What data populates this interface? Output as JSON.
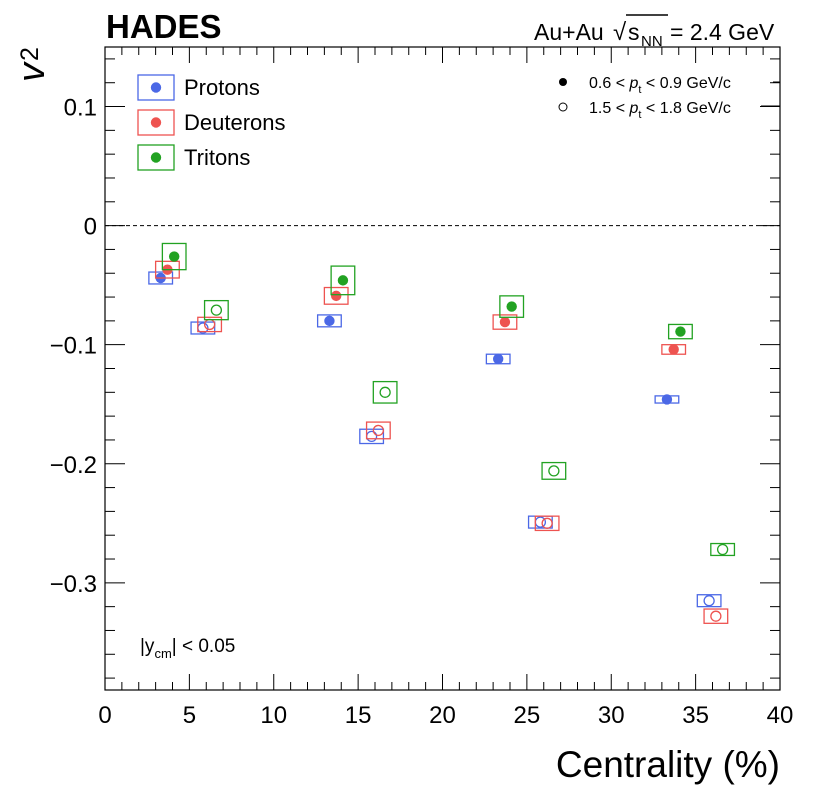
{
  "chart_data": {
    "type": "scatter",
    "experiment": "HADES",
    "system": "Au+Au",
    "energy_label": "= 2.4 GeV",
    "sqrt_symbol": "√",
    "s_symbol": "s",
    "nn_sub": "NN",
    "xlabel": "Centrality (%)",
    "ylabel": "v",
    "ylabel_sub": "2",
    "rapidity_label": "|y",
    "rapidity_sub": "cm",
    "rapidity_value": "| < 0.05",
    "xlim": [
      0,
      40
    ],
    "ylim": [
      -0.39,
      0.15
    ],
    "x_ticks": [
      0,
      5,
      10,
      15,
      20,
      25,
      30,
      35,
      40
    ],
    "x_tick_labels": [
      "0",
      "5",
      "10",
      "15",
      "20",
      "25",
      "30",
      "35",
      "40"
    ],
    "y_ticks": [
      0.1,
      0,
      -0.1,
      -0.2,
      -0.3
    ],
    "y_tick_labels": [
      "0.1",
      "0",
      "−0.1",
      "−0.2",
      "−0.3"
    ],
    "zero_line": true,
    "legend": [
      {
        "name": "Protons",
        "color": "#4b68e6"
      },
      {
        "name": "Deuterons",
        "color": "#ee5350"
      },
      {
        "name": "Tritons",
        "color": "#22a222"
      }
    ],
    "pt_legend": [
      {
        "marker": "filled",
        "pre": "0.6 < ",
        "p": "p",
        "sub": "t",
        "post": " < 0.9 GeV/c"
      },
      {
        "marker": "open",
        "pre": "1.5 < ",
        "p": "p",
        "sub": "t",
        "post": " < 1.8 GeV/c"
      }
    ],
    "series": [
      {
        "name": "Protons",
        "pt_bin": "0.6 < pt < 0.9 GeV/c",
        "marker": "filled",
        "color": "#4b68e6",
        "x": [
          3.3,
          13.3,
          23.3,
          33.3
        ],
        "y": [
          -0.044,
          -0.08,
          -0.112,
          -0.146
        ],
        "sys_half_width": [
          0.7,
          0.7,
          0.7,
          0.7
        ],
        "sys_error": [
          0.005,
          0.005,
          0.004,
          0.003
        ]
      },
      {
        "name": "Deuterons",
        "pt_bin": "0.6 < pt < 0.9 GeV/c",
        "marker": "filled",
        "color": "#ee5350",
        "x": [
          3.7,
          13.7,
          23.7,
          33.7
        ],
        "y": [
          -0.037,
          -0.059,
          -0.081,
          -0.104
        ],
        "sys_half_width": [
          0.7,
          0.7,
          0.7,
          0.7
        ],
        "sys_error": [
          0.007,
          0.007,
          0.006,
          0.004
        ]
      },
      {
        "name": "Tritons",
        "pt_bin": "0.6 < pt < 0.9 GeV/c",
        "marker": "filled",
        "color": "#22a222",
        "x": [
          4.1,
          14.1,
          24.1,
          34.1
        ],
        "y": [
          -0.026,
          -0.046,
          -0.068,
          -0.089
        ],
        "sys_half_width": [
          0.7,
          0.7,
          0.7,
          0.7
        ],
        "sys_error": [
          0.011,
          0.012,
          0.009,
          0.006
        ]
      },
      {
        "name": "Protons",
        "pt_bin": "1.5 < pt < 1.8 GeV/c",
        "marker": "open",
        "color": "#4b68e6",
        "x": [
          5.8,
          15.8,
          25.8,
          35.8
        ],
        "y": [
          -0.086,
          -0.177,
          -0.249,
          -0.315
        ],
        "sys_half_width": [
          0.7,
          0.7,
          0.7,
          0.7
        ],
        "sys_error": [
          0.005,
          0.006,
          0.005,
          0.005
        ]
      },
      {
        "name": "Deuterons",
        "pt_bin": "1.5 < pt < 1.8 GeV/c",
        "marker": "open",
        "color": "#ee5350",
        "x": [
          6.2,
          16.2,
          26.2,
          36.2
        ],
        "y": [
          -0.083,
          -0.172,
          -0.25,
          -0.328
        ],
        "sys_half_width": [
          0.7,
          0.7,
          0.7,
          0.7
        ],
        "sys_error": [
          0.006,
          0.007,
          0.006,
          0.006
        ]
      },
      {
        "name": "Tritons",
        "pt_bin": "1.5 < pt < 1.8 GeV/c",
        "marker": "open",
        "color": "#22a222",
        "x": [
          6.6,
          16.6,
          26.6,
          36.6
        ],
        "y": [
          -0.071,
          -0.14,
          -0.206,
          -0.272
        ],
        "sys_half_width": [
          0.7,
          0.7,
          0.7,
          0.7
        ],
        "sys_error": [
          0.008,
          0.009,
          0.007,
          0.005
        ]
      }
    ]
  }
}
